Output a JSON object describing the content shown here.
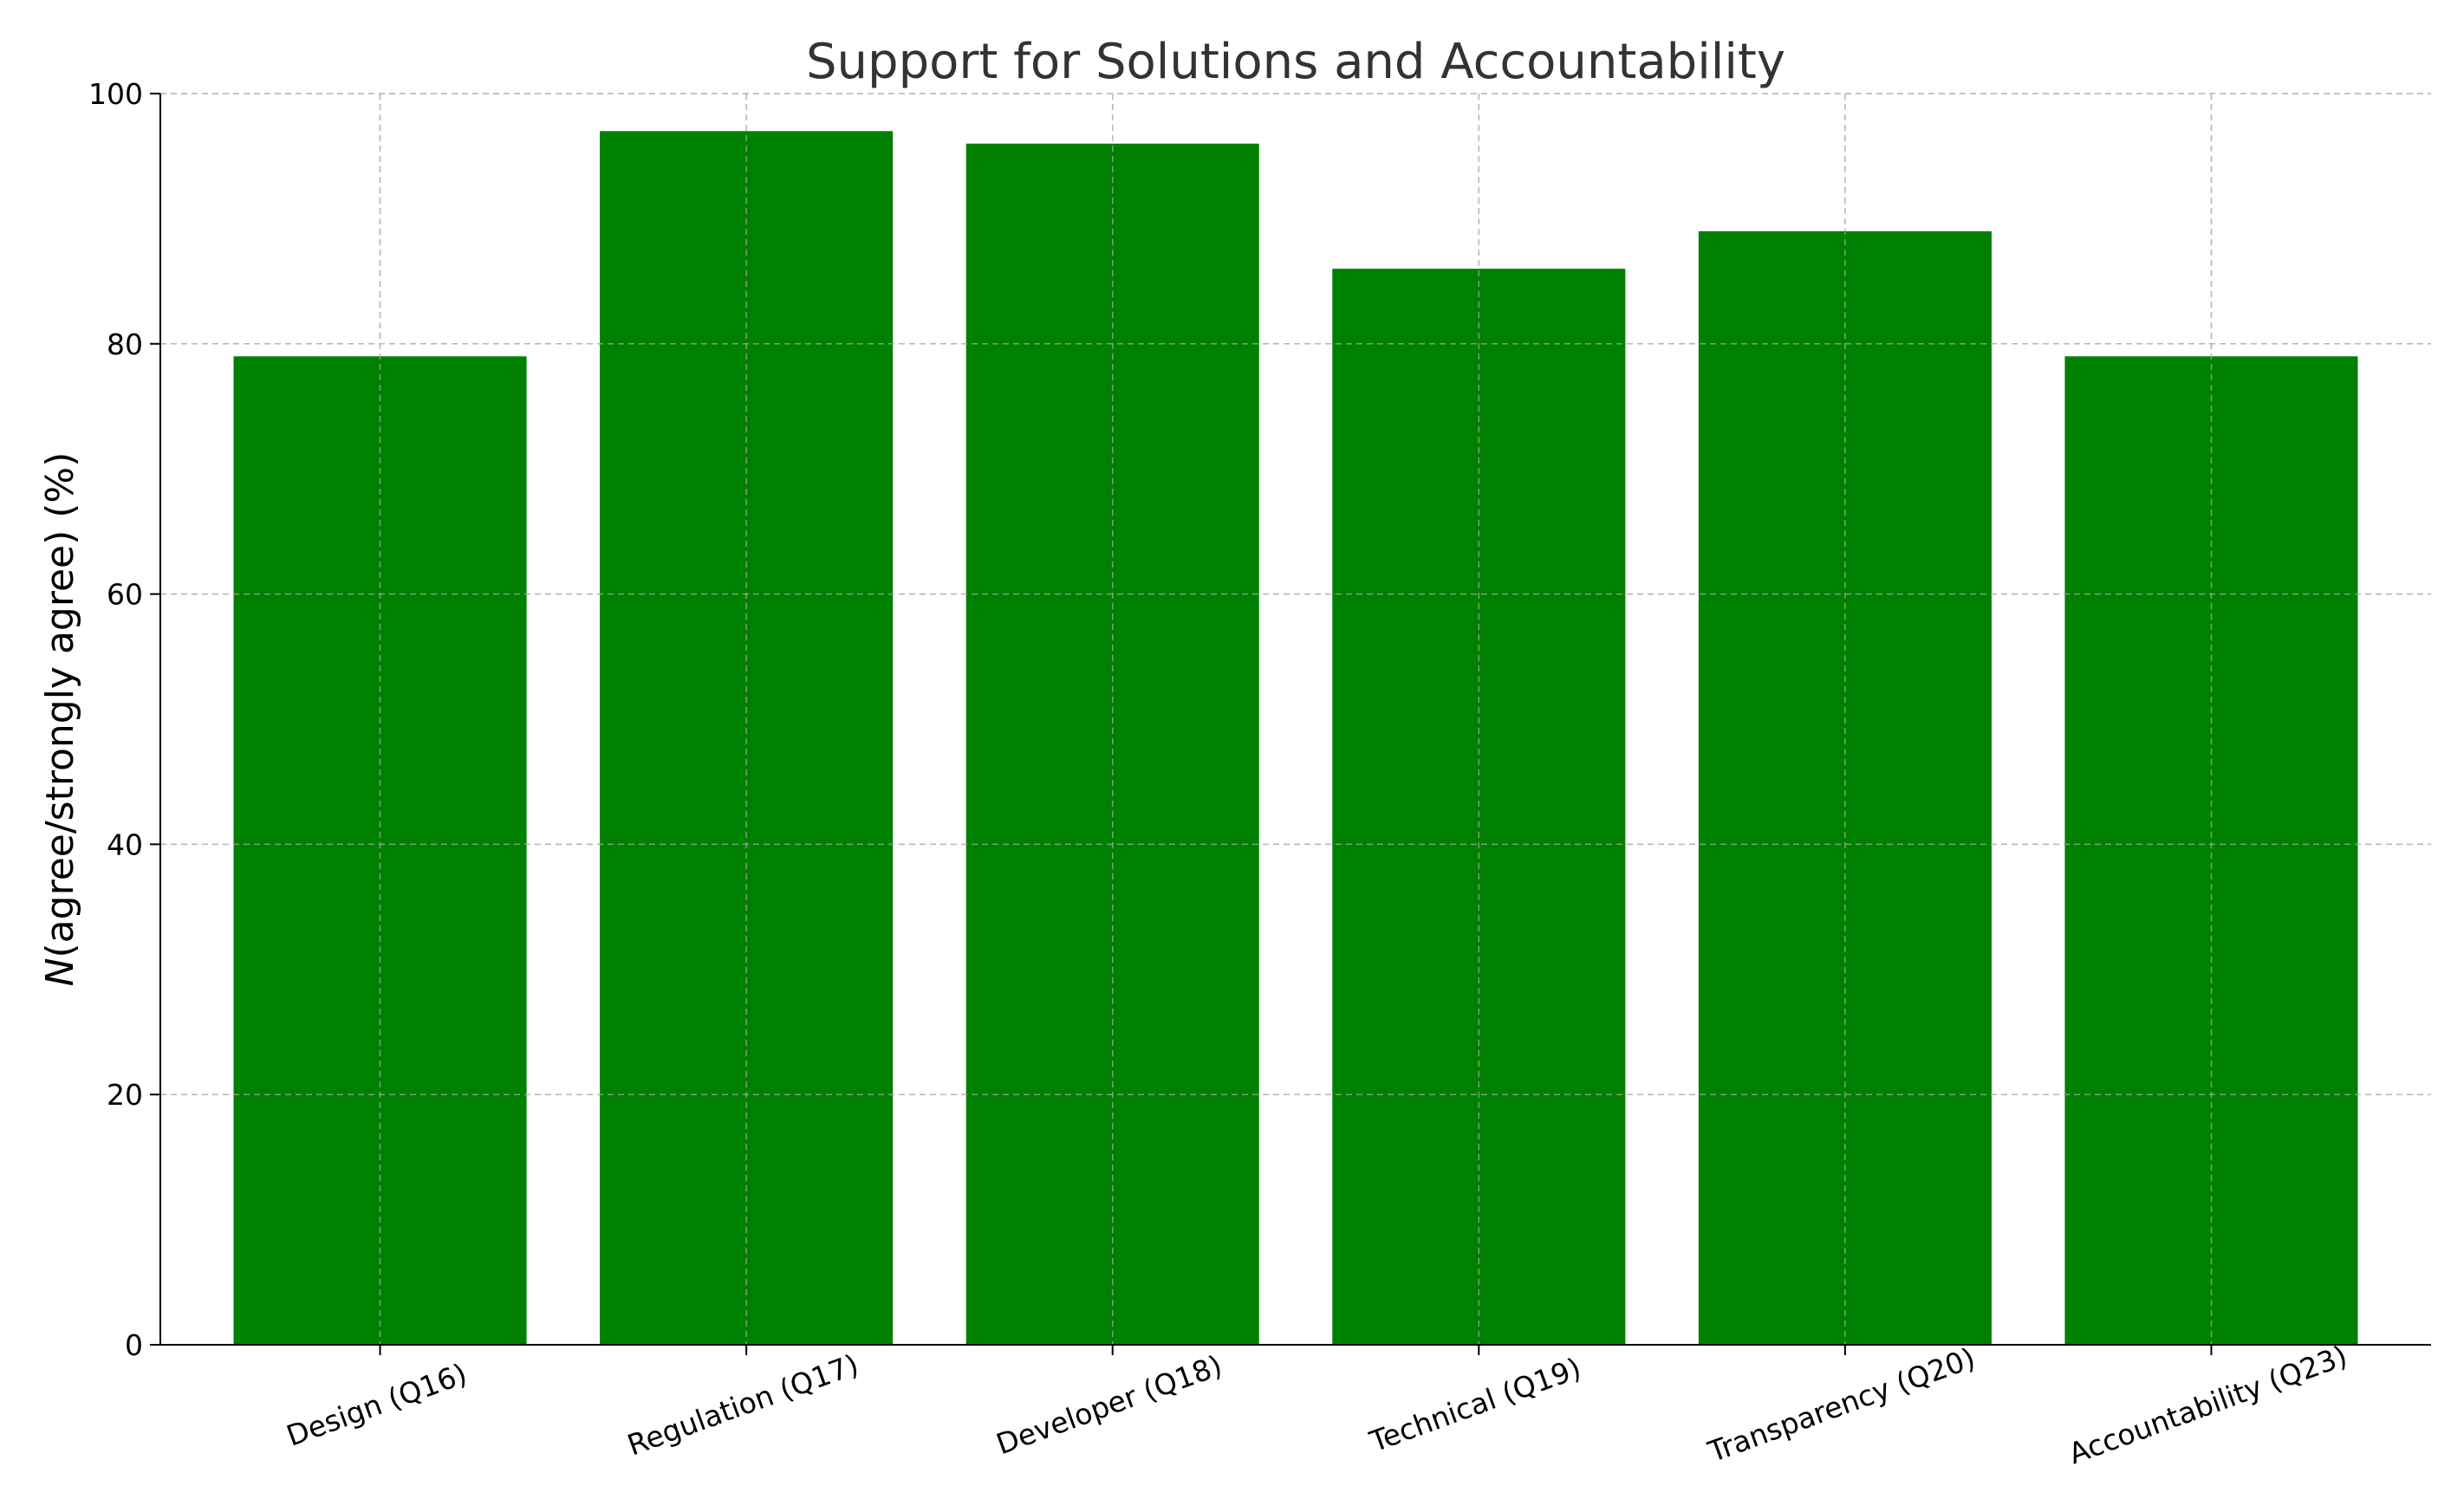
{
  "chart_data": {
    "type": "bar",
    "title": "Support for Solutions and Accountability",
    "ylabel_italic": "N",
    "ylabel_rest": "(agree/strongly agree) (%)",
    "xlabel": "",
    "categories": [
      "Design (Q16)",
      "Regulation (Q17)",
      "Developer (Q18)",
      "Technical (Q19)",
      "Transparency (Q20)",
      "Accountability (Q23)"
    ],
    "values": [
      79,
      97,
      96,
      86,
      89,
      79
    ],
    "ylim": [
      0,
      100
    ],
    "yticks": [
      0,
      20,
      40,
      60,
      80,
      100
    ],
    "grid": true,
    "legend": "none",
    "bar_color": "#008000"
  }
}
